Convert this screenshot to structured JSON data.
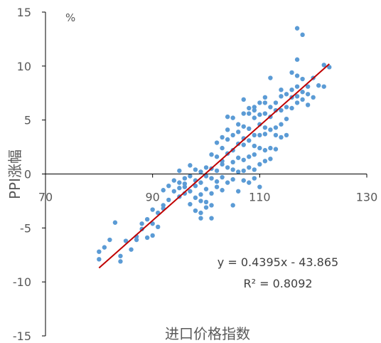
{
  "chart_data": {
    "type": "scatter",
    "title": "",
    "xlabel": "进口价格指数",
    "ylabel": "PPI涨幅",
    "unit_label": "%",
    "xlim": [
      70,
      130
    ],
    "ylim": [
      -15,
      15
    ],
    "x_ticks": [
      70,
      90,
      110,
      130
    ],
    "y_ticks": [
      15,
      10,
      5,
      0,
      -5,
      -10,
      -15
    ],
    "x_tick_labels": [
      "70",
      "90",
      "110",
      "130"
    ],
    "y_tick_labels": [
      "15",
      "10",
      "5",
      "0",
      "-5",
      "-10",
      "-15"
    ],
    "grid": false,
    "colors": {
      "points": "#5B9BD5",
      "trendline": "#C00000",
      "axis": "#000000"
    },
    "trendline": {
      "slope": 0.4395,
      "intercept": -43.865,
      "x_range": [
        80,
        123
      ],
      "equation_text": "y = 0.4395x - 43.865",
      "r2_text": "R² = 0.8092"
    },
    "series": [
      {
        "points": [
          [
            80,
            -7.2
          ],
          [
            80,
            -7.9
          ],
          [
            81,
            -6.8
          ],
          [
            82,
            -6.1
          ],
          [
            83,
            -4.5
          ],
          [
            84,
            -8.1
          ],
          [
            84,
            -7.6
          ],
          [
            85,
            -6.2
          ],
          [
            86,
            -7
          ],
          [
            87,
            -5.8
          ],
          [
            87,
            -6.1
          ],
          [
            88,
            -5.1
          ],
          [
            88,
            -4.6
          ],
          [
            89,
            -5.9
          ],
          [
            89,
            -4.2
          ],
          [
            90,
            -4.6
          ],
          [
            90,
            -3.3
          ],
          [
            90,
            -5.7
          ],
          [
            91,
            -4.9
          ],
          [
            91,
            -3.6
          ],
          [
            92,
            -2.9
          ],
          [
            92,
            -1.5
          ],
          [
            92,
            -3.2
          ],
          [
            93,
            -2.4
          ],
          [
            93,
            -1.1
          ],
          [
            94,
            -1.6
          ],
          [
            94,
            -0.6
          ],
          [
            95,
            -1.3
          ],
          [
            95,
            -2.1
          ],
          [
            95,
            -0.8
          ],
          [
            95,
            0.3
          ],
          [
            96,
            -0.4
          ],
          [
            96,
            -1.2
          ],
          [
            96,
            -1.8
          ],
          [
            96,
            -0.9
          ],
          [
            97,
            -0.2
          ],
          [
            97,
            -2.8
          ],
          [
            97,
            -1.6
          ],
          [
            97,
            0.8
          ],
          [
            98,
            -0.6
          ],
          [
            98,
            -3.4
          ],
          [
            98,
            -2.2
          ],
          [
            98,
            -1.1
          ],
          [
            98,
            0.4
          ],
          [
            99,
            -3.6
          ],
          [
            99,
            -1.9
          ],
          [
            99,
            -0.8
          ],
          [
            99,
            0.2
          ],
          [
            99,
            -2.5
          ],
          [
            99,
            -4.1
          ],
          [
            100,
            -3.1
          ],
          [
            100,
            -1.4
          ],
          [
            100,
            0.6
          ],
          [
            100,
            -0.2
          ],
          [
            100,
            -2.6
          ],
          [
            101,
            -1.8
          ],
          [
            101,
            -0.4
          ],
          [
            101,
            0.5
          ],
          [
            101,
            1.8
          ],
          [
            101,
            -2.9
          ],
          [
            101,
            -4.1
          ],
          [
            102,
            -1.2
          ],
          [
            102,
            0.3
          ],
          [
            102,
            1.6
          ],
          [
            102,
            -0.7
          ],
          [
            102,
            2.9
          ],
          [
            103,
            -1.5
          ],
          [
            103,
            0.9
          ],
          [
            103,
            1.2
          ],
          [
            103,
            2.4
          ],
          [
            103,
            3.4
          ],
          [
            103,
            -0.3
          ],
          [
            104,
            -0.8
          ],
          [
            104,
            0.6
          ],
          [
            104,
            1.9
          ],
          [
            104,
            3.2
          ],
          [
            104,
            4.1
          ],
          [
            104,
            5.3
          ],
          [
            105,
            0.4
          ],
          [
            105,
            1.1
          ],
          [
            105,
            2.2
          ],
          [
            105,
            3.6
          ],
          [
            105,
            5.2
          ],
          [
            105,
            -0.5
          ],
          [
            105,
            -2.9
          ],
          [
            106,
            0.2
          ],
          [
            106,
            1.5
          ],
          [
            106,
            2.8
          ],
          [
            106,
            4.6
          ],
          [
            106,
            3.9
          ],
          [
            106,
            -1.6
          ],
          [
            107,
            0.3
          ],
          [
            107,
            1.3
          ],
          [
            107,
            2.7
          ],
          [
            107,
            3.3
          ],
          [
            107,
            4.4
          ],
          [
            107,
            5.6
          ],
          [
            107,
            6.9
          ],
          [
            107,
            -0.6
          ],
          [
            108,
            0.6
          ],
          [
            108,
            1.6
          ],
          [
            108,
            3.1
          ],
          [
            108,
            4.2
          ],
          [
            108,
            5.6
          ],
          [
            108,
            6.1
          ],
          [
            108,
            -0.8
          ],
          [
            109,
            0.4
          ],
          [
            109,
            1.8
          ],
          [
            109,
            2.6
          ],
          [
            109,
            3.6
          ],
          [
            109,
            5.2
          ],
          [
            109,
            6.2
          ],
          [
            109,
            5.9
          ],
          [
            109,
            -0.4
          ],
          [
            110,
            0.9
          ],
          [
            110,
            2.4
          ],
          [
            110,
            3.6
          ],
          [
            110,
            4.6
          ],
          [
            110,
            5.5
          ],
          [
            110,
            6.6
          ],
          [
            110,
            -1.2
          ],
          [
            111,
            1.2
          ],
          [
            111,
            2.2
          ],
          [
            111,
            3.7
          ],
          [
            111,
            4.3
          ],
          [
            111,
            5.6
          ],
          [
            111,
            6.6
          ],
          [
            111,
            7.1
          ],
          [
            112,
            1.4
          ],
          [
            112,
            2.4
          ],
          [
            112,
            4.1
          ],
          [
            112,
            5.3
          ],
          [
            112,
            6.2
          ],
          [
            112,
            8.9
          ],
          [
            113,
            2.3
          ],
          [
            113,
            3.6
          ],
          [
            113,
            4.3
          ],
          [
            113,
            5.9
          ],
          [
            113,
            6.6
          ],
          [
            114,
            3.4
          ],
          [
            114,
            4.6
          ],
          [
            114,
            5.9
          ],
          [
            114,
            7.2
          ],
          [
            114,
            7.8
          ],
          [
            115,
            3.6
          ],
          [
            115,
            5.1
          ],
          [
            115,
            6.2
          ],
          [
            115,
            7.4
          ],
          [
            116,
            6.1
          ],
          [
            116,
            7.1
          ],
          [
            116,
            7.8
          ],
          [
            116,
            9.4
          ],
          [
            117,
            6.6
          ],
          [
            117,
            7.2
          ],
          [
            117,
            8.1
          ],
          [
            117,
            9.1
          ],
          [
            117,
            10.6
          ],
          [
            117,
            13.5
          ],
          [
            118,
            6.9
          ],
          [
            118,
            7.6
          ],
          [
            118,
            8.8
          ],
          [
            118,
            12.9
          ],
          [
            119,
            6.4
          ],
          [
            119,
            7.4
          ],
          [
            119,
            8.1
          ],
          [
            120,
            7.1
          ],
          [
            120,
            8.9
          ],
          [
            121,
            8.2
          ],
          [
            122,
            8.1
          ],
          [
            122,
            10.1
          ],
          [
            123,
            9.9
          ]
        ]
      }
    ]
  }
}
